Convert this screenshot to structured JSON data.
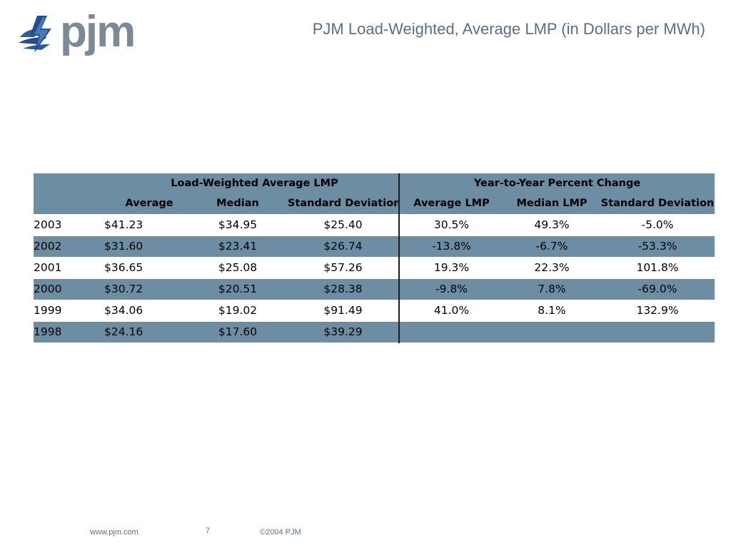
{
  "header": {
    "logo_text": "pjm",
    "title": "PJM Load-Weighted, Average LMP (in Dollars per MWh)"
  },
  "table": {
    "group_headers": {
      "left": "Load-Weighted Average LMP",
      "right": "Year-to-Year Percent Change"
    },
    "columns": [
      "Average",
      "Median",
      "Standard Deviation",
      "Average LMP",
      "Median LMP",
      "Standard Deviation"
    ],
    "rows": [
      {
        "year": "2003",
        "average": "$41.23",
        "median": "$34.95",
        "std": "$25.40",
        "pct_avg": "30.5%",
        "pct_median": "49.3%",
        "pct_std": "-5.0%"
      },
      {
        "year": "2002",
        "average": "$31.60",
        "median": "$23.41",
        "std": "$26.74",
        "pct_avg": "-13.8%",
        "pct_median": "-6.7%",
        "pct_std": "-53.3%"
      },
      {
        "year": "2001",
        "average": "$36.65",
        "median": "$25.08",
        "std": "$57.26",
        "pct_avg": "19.3%",
        "pct_median": "22.3%",
        "pct_std": "101.8%"
      },
      {
        "year": "2000",
        "average": "$30.72",
        "median": "$20.51",
        "std": "$28.38",
        "pct_avg": "-9.8%",
        "pct_median": "7.8%",
        "pct_std": "-69.0%"
      },
      {
        "year": "1999",
        "average": "$34.06",
        "median": "$19.02",
        "std": "$91.49",
        "pct_avg": "41.0%",
        "pct_median": "8.1%",
        "pct_std": "132.9%"
      },
      {
        "year": "1998",
        "average": "$24.16",
        "median": "$17.60",
        "std": "$39.29",
        "pct_avg": "",
        "pct_median": "",
        "pct_std": ""
      }
    ]
  },
  "footer": {
    "url": "www.pjm.com",
    "page_number": "7",
    "copyright": "©2004 PJM"
  },
  "colors": {
    "row_accent": "#6d8da2",
    "title_text": "#5a6f86",
    "logo_gray": "#7b8a96",
    "logo_blue": "#1f4f8f"
  },
  "icons": {
    "logo": "pjm-lightning-logo"
  }
}
